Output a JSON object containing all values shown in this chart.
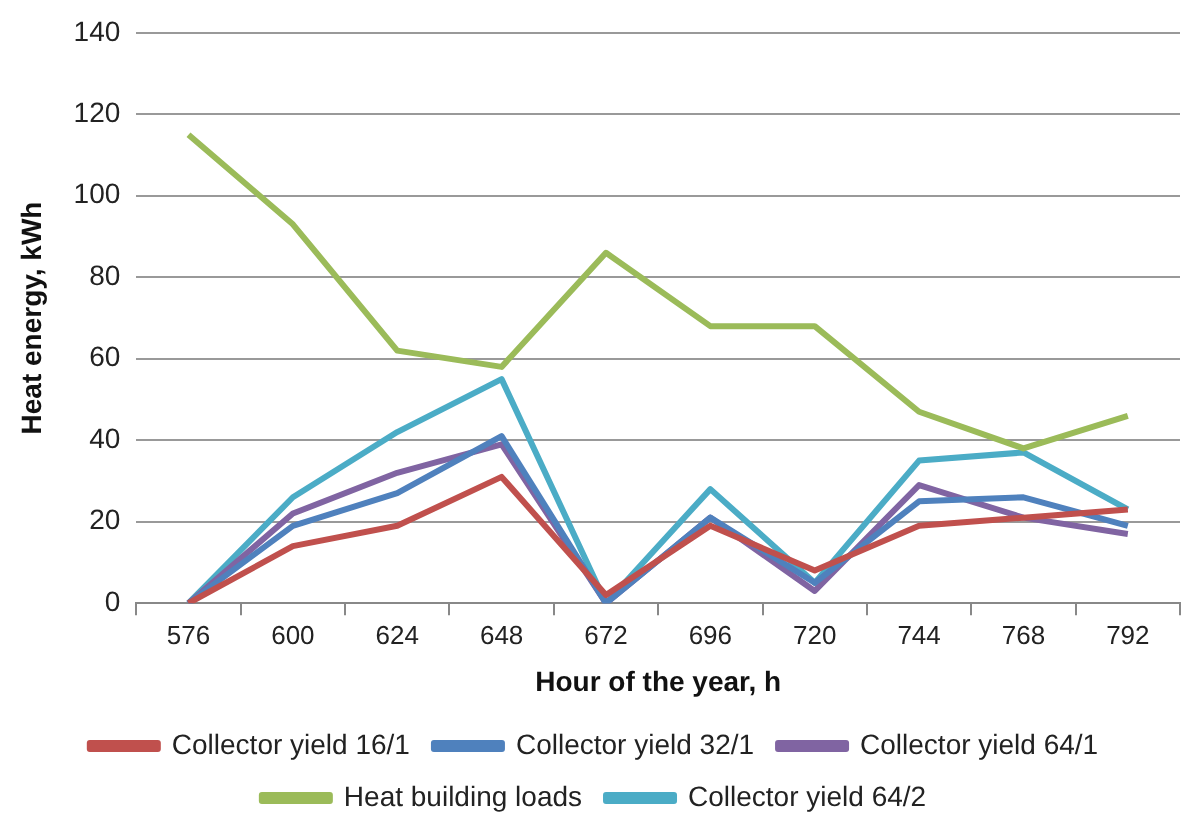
{
  "chart_data": {
    "type": "line",
    "xlabel": "Hour of the year, h",
    "ylabel": "Heat energy, kWh",
    "categories": [
      "576",
      "600",
      "624",
      "648",
      "672",
      "696",
      "720",
      "744",
      "768",
      "792"
    ],
    "series": [
      {
        "name": "Collector yield 16/1",
        "color": "#c0504d",
        "values": [
          0,
          14,
          19,
          31,
          2,
          19,
          8,
          19,
          21,
          23
        ]
      },
      {
        "name": "Collector yield 32/1",
        "color": "#4f81bd",
        "values": [
          0,
          19,
          27,
          41,
          0,
          21,
          5,
          25,
          26,
          19
        ]
      },
      {
        "name": "Collector yield 64/1",
        "color": "#8064a2",
        "values": [
          0,
          22,
          32,
          39,
          0,
          21,
          3,
          29,
          21,
          17
        ]
      },
      {
        "name": "Heat building loads",
        "color": "#9bbb59",
        "values": [
          115,
          93,
          62,
          58,
          86,
          68,
          68,
          47,
          38,
          46
        ]
      },
      {
        "name": "Collector yield 64/2",
        "color": "#4bacc6",
        "values": [
          0,
          26,
          42,
          55,
          0,
          28,
          5,
          35,
          37,
          23
        ]
      }
    ],
    "ylim": [
      0,
      140
    ],
    "yticks": [
      0,
      20,
      40,
      60,
      80,
      100,
      120,
      140
    ],
    "grid": "y",
    "legend": "bottom",
    "marker": "none",
    "line_style": "solid"
  }
}
